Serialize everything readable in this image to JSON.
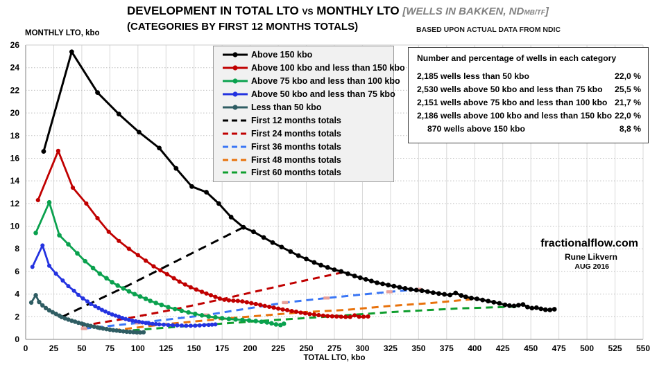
{
  "title": {
    "part1": "DEVELOPMENT IN TOTAL LTO",
    "vs": "VS",
    "part2": "MONTHLY LTO",
    "bracket_pre": "[WELLS IN BAKKEN, ND",
    "bracket_sub": "MB/TF",
    "bracket_close": "]",
    "line2": "(CATEGORIES BY FIRST 12 MONTHS TOTALS)",
    "source_note": "BASED UPON ACTUAL DATA FROM NDIC"
  },
  "axes": {
    "y_title": "MONTHLY LTO, kbo",
    "x_title": "TOTAL LTO, kbo"
  },
  "stats_box": {
    "title": "Number and percentage of wells in each category",
    "rows": [
      {
        "label": "2,185 wells less than 50 kbo",
        "pct": "22,0 %",
        "indent": false
      },
      {
        "label": "2,530 wells above 50 kbo and less than 75 kbo",
        "pct": "25,5 %",
        "indent": false
      },
      {
        "label": "2,151 wells above 75 kbo and less than 100 kbo",
        "pct": "21,7 %",
        "indent": false
      },
      {
        "label": "2,186 wells above 100 kbo and less than 150 kbo",
        "pct": "22,0 %",
        "indent": false
      },
      {
        "label": "870 wells above 150 kbo",
        "pct": "8,8 %",
        "indent": true
      }
    ]
  },
  "watermark": {
    "site": "fractionalflow.com",
    "author": "Rune Likvern",
    "date": "AUG 2016"
  },
  "chart_data": {
    "type": "line",
    "xlabel": "TOTAL LTO, kbo",
    "ylabel": "MONTHLY LTO, kbo",
    "xlim": [
      0,
      550
    ],
    "ylim": [
      0,
      26
    ],
    "x_ticks": [
      0,
      25,
      50,
      75,
      100,
      125,
      150,
      175,
      200,
      225,
      250,
      275,
      300,
      325,
      350,
      375,
      400,
      425,
      450,
      475,
      500,
      525,
      550
    ],
    "y_ticks": [
      0,
      2,
      4,
      6,
      8,
      10,
      12,
      14,
      16,
      18,
      20,
      22,
      24,
      26
    ],
    "grid": "vertical solid light gray, horizontal dotted",
    "legend_position": "upper left box",
    "series": [
      {
        "name": "Above 150 kbo",
        "color": "#000000",
        "style": "solid",
        "width": 3,
        "marker_r": 3.4,
        "points": [
          [
            16,
            16.6
          ],
          [
            41,
            25.4
          ],
          [
            64,
            21.8
          ],
          [
            83,
            19.9
          ],
          [
            101,
            18.3
          ],
          [
            119,
            16.9
          ],
          [
            134,
            15.1
          ],
          [
            148,
            13.5
          ],
          [
            161,
            13.0
          ],
          [
            172,
            12.0
          ],
          [
            183,
            10.8
          ],
          [
            194,
            9.9
          ],
          [
            203,
            9.5
          ],
          [
            212,
            9.0
          ],
          [
            220,
            8.55
          ],
          [
            228,
            8.15
          ],
          [
            236,
            7.75
          ],
          [
            243,
            7.4
          ],
          [
            250,
            7.1
          ],
          [
            257,
            6.8
          ],
          [
            263,
            6.55
          ],
          [
            269,
            6.35
          ],
          [
            275,
            6.15
          ],
          [
            281,
            6.0
          ],
          [
            287,
            5.8
          ],
          [
            293,
            5.6
          ],
          [
            298,
            5.45
          ],
          [
            303,
            5.3
          ],
          [
            308,
            5.15
          ],
          [
            313,
            5.0
          ],
          [
            318,
            4.9
          ],
          [
            323,
            4.8
          ],
          [
            328,
            4.7
          ],
          [
            333,
            4.6
          ],
          [
            338,
            4.5
          ],
          [
            343,
            4.42
          ],
          [
            348,
            4.35
          ],
          [
            353,
            4.3
          ],
          [
            358,
            4.22
          ],
          [
            363,
            4.12
          ],
          [
            368,
            4.05
          ],
          [
            373,
            3.98
          ],
          [
            378,
            3.92
          ],
          [
            383,
            4.1
          ],
          [
            388,
            3.88
          ],
          [
            392,
            3.75
          ],
          [
            397,
            3.65
          ],
          [
            402,
            3.58
          ],
          [
            407,
            3.48
          ],
          [
            412,
            3.38
          ],
          [
            417,
            3.28
          ],
          [
            422,
            3.18
          ],
          [
            427,
            3.05
          ],
          [
            431,
            2.98
          ],
          [
            435,
            2.95
          ],
          [
            439,
            3.02
          ],
          [
            443,
            3.08
          ],
          [
            447,
            2.86
          ],
          [
            451,
            2.76
          ],
          [
            455,
            2.8
          ],
          [
            459,
            2.7
          ],
          [
            463,
            2.62
          ],
          [
            467,
            2.6
          ],
          [
            471,
            2.66
          ]
        ]
      },
      {
        "name": "Above 100 kbo and less than 150 kbo",
        "color": "#C00000",
        "style": "solid",
        "width": 2.8,
        "marker_r": 3.1,
        "points": [
          [
            11,
            12.3
          ],
          [
            29,
            16.65
          ],
          [
            42,
            13.4
          ],
          [
            54,
            12.0
          ],
          [
            64,
            10.7
          ],
          [
            74,
            9.5
          ],
          [
            83,
            8.7
          ],
          [
            92,
            8.0
          ],
          [
            100,
            7.45
          ],
          [
            107,
            6.95
          ],
          [
            114,
            6.45
          ],
          [
            120,
            6.1
          ],
          [
            126,
            5.75
          ],
          [
            132,
            5.4
          ],
          [
            137,
            5.1
          ],
          [
            142,
            4.85
          ],
          [
            147,
            4.6
          ],
          [
            152,
            4.4
          ],
          [
            157,
            4.2
          ],
          [
            161,
            4.05
          ],
          [
            165,
            3.9
          ],
          [
            169,
            3.75
          ],
          [
            173,
            3.6
          ],
          [
            177,
            3.5
          ],
          [
            181,
            3.45
          ],
          [
            185,
            3.42
          ],
          [
            189,
            3.4
          ],
          [
            193,
            3.35
          ],
          [
            197,
            3.28
          ],
          [
            201,
            3.2
          ],
          [
            205,
            3.12
          ],
          [
            209,
            3.05
          ],
          [
            213,
            2.95
          ],
          [
            217,
            2.88
          ],
          [
            221,
            2.8
          ],
          [
            225,
            2.72
          ],
          [
            229,
            2.64
          ],
          [
            233,
            2.58
          ],
          [
            237,
            2.5
          ],
          [
            241,
            2.44
          ],
          [
            245,
            2.36
          ],
          [
            249,
            2.3
          ],
          [
            253,
            2.24
          ],
          [
            257,
            2.2
          ],
          [
            261,
            2.14
          ],
          [
            265,
            2.1
          ],
          [
            269,
            2.06
          ],
          [
            273,
            2.04
          ],
          [
            277,
            2.02
          ],
          [
            281,
            2.0
          ],
          [
            285,
            1.98
          ],
          [
            289,
            1.98
          ],
          [
            293,
            2.12
          ],
          [
            297,
            2.0
          ],
          [
            301,
            2.0
          ],
          [
            305,
            2.02
          ]
        ]
      },
      {
        "name": "Above 75 kbo and less than 100 kbo",
        "color": "#0AA14E",
        "style": "solid",
        "width": 2.8,
        "marker_r": 3.3,
        "points": [
          [
            9,
            9.4
          ],
          [
            21,
            12.1
          ],
          [
            30,
            9.2
          ],
          [
            38,
            8.4
          ],
          [
            46,
            7.6
          ],
          [
            53,
            6.9
          ],
          [
            60,
            6.3
          ],
          [
            66,
            5.8
          ],
          [
            72,
            5.4
          ],
          [
            77,
            5.05
          ],
          [
            82,
            4.75
          ],
          [
            87,
            4.5
          ],
          [
            92,
            4.25
          ],
          [
            97,
            4.0
          ],
          [
            102,
            3.78
          ],
          [
            107,
            3.58
          ],
          [
            111,
            3.4
          ],
          [
            116,
            3.22
          ],
          [
            121,
            3.05
          ],
          [
            127,
            2.85
          ],
          [
            133,
            2.68
          ],
          [
            139,
            2.52
          ],
          [
            145,
            2.38
          ],
          [
            151,
            2.25
          ],
          [
            157,
            2.12
          ],
          [
            163,
            2.02
          ],
          [
            169,
            1.95
          ],
          [
            175,
            1.87
          ],
          [
            181,
            1.8
          ],
          [
            187,
            1.76
          ],
          [
            193,
            1.72
          ],
          [
            199,
            1.67
          ],
          [
            205,
            1.62
          ],
          [
            210,
            1.55
          ],
          [
            215,
            1.5
          ],
          [
            219,
            1.42
          ],
          [
            223,
            1.32
          ],
          [
            227,
            1.27
          ],
          [
            230,
            1.38
          ]
        ]
      },
      {
        "name": "Above 50 kbo and less than 75 kbo",
        "color": "#2433E0",
        "style": "solid",
        "width": 2.8,
        "marker_r": 3.0,
        "points": [
          [
            6,
            6.4
          ],
          [
            15,
            8.3
          ],
          [
            21,
            6.5
          ],
          [
            27,
            5.8
          ],
          [
            33,
            5.2
          ],
          [
            38,
            4.7
          ],
          [
            43,
            4.3
          ],
          [
            47,
            3.92
          ],
          [
            51,
            3.62
          ],
          [
            55,
            3.35
          ],
          [
            58,
            3.12
          ],
          [
            62,
            2.92
          ],
          [
            65,
            2.76
          ],
          [
            68,
            2.6
          ],
          [
            71,
            2.46
          ],
          [
            74,
            2.32
          ],
          [
            77,
            2.2
          ],
          [
            80,
            2.1
          ],
          [
            83,
            2.0
          ],
          [
            86,
            1.9
          ],
          [
            89,
            1.8
          ],
          [
            92,
            1.72
          ],
          [
            95,
            1.65
          ],
          [
            98,
            1.6
          ],
          [
            101,
            1.55
          ],
          [
            104,
            1.5
          ],
          [
            107,
            1.45
          ],
          [
            110,
            1.4
          ],
          [
            113,
            1.37
          ],
          [
            116,
            1.35
          ],
          [
            119,
            1.32
          ],
          [
            123,
            1.3
          ],
          [
            127,
            1.27
          ],
          [
            131,
            1.25
          ],
          [
            135,
            1.24
          ],
          [
            139,
            1.22
          ],
          [
            143,
            1.2
          ],
          [
            147,
            1.2
          ],
          [
            151,
            1.21
          ],
          [
            155,
            1.23
          ],
          [
            159,
            1.26
          ],
          [
            163,
            1.28
          ],
          [
            166,
            1.3
          ],
          [
            169,
            1.32
          ]
        ]
      },
      {
        "name": "Less than 50 kbo",
        "color": "#2F5D63",
        "style": "solid",
        "width": 2.8,
        "marker_r": 3.2,
        "points": [
          [
            5,
            3.25
          ],
          [
            9,
            3.9
          ],
          [
            12,
            3.3
          ],
          [
            15,
            3.0
          ],
          [
            18,
            2.76
          ],
          [
            21,
            2.56
          ],
          [
            24,
            2.4
          ],
          [
            27,
            2.25
          ],
          [
            30,
            2.1
          ],
          [
            32,
            1.97
          ],
          [
            35,
            1.86
          ],
          [
            38,
            1.75
          ],
          [
            41,
            1.65
          ],
          [
            44,
            1.56
          ],
          [
            47,
            1.47
          ],
          [
            50,
            1.39
          ],
          [
            52,
            1.32
          ],
          [
            55,
            1.25
          ],
          [
            58,
            1.18
          ],
          [
            61,
            1.12
          ],
          [
            64,
            1.06
          ],
          [
            66,
            1.01
          ],
          [
            69,
            0.96
          ],
          [
            72,
            0.91
          ],
          [
            75,
            0.86
          ],
          [
            78,
            0.81
          ],
          [
            81,
            0.78
          ],
          [
            84,
            0.74
          ],
          [
            87,
            0.71
          ],
          [
            90,
            0.68
          ],
          [
            93,
            0.66
          ],
          [
            96,
            0.64
          ],
          [
            99,
            0.62
          ],
          [
            102,
            0.61
          ],
          [
            105,
            0.63
          ]
        ]
      },
      {
        "name": "First 12 months totals",
        "color": "#000000",
        "style": "dashed",
        "dash": "12 8",
        "points": [
          [
            32,
            1.97
          ],
          [
            90,
            4.7
          ],
          [
            140,
            7.2
          ],
          [
            194,
            9.9
          ]
        ]
      },
      {
        "name": "First 24 months totals",
        "color": "#C00000",
        "style": "dashed",
        "dash": "10 7",
        "points": [
          [
            50,
            1.2
          ],
          [
            90,
            1.85
          ],
          [
            130,
            2.6
          ],
          [
            175,
            3.55
          ],
          [
            230,
            4.8
          ],
          [
            284,
            5.95
          ]
        ]
      },
      {
        "name": "First 36 months totals",
        "color": "#3A76F5",
        "style": "dashed",
        "dash": "10 7",
        "marker_color": "#E8A09A",
        "points": [
          [
            52,
            0.95
          ],
          [
            100,
            1.45
          ],
          [
            161,
            2.15
          ],
          [
            231,
            3.25
          ],
          [
            268,
            3.65
          ],
          [
            324,
            4.2
          ],
          [
            350,
            4.42
          ]
        ]
      },
      {
        "name": "First 48 months totals",
        "color": "#E8720C",
        "style": "dashed",
        "dash": "10 7",
        "points": [
          [
            78,
            0.8
          ],
          [
            125,
            1.35
          ],
          [
            185,
            1.9
          ],
          [
            247,
            2.4
          ],
          [
            285,
            2.6
          ],
          [
            324,
            2.95
          ],
          [
            360,
            3.2
          ],
          [
            398,
            3.55
          ]
        ]
      },
      {
        "name": "First 60 months totals",
        "color": "#0F9E2E",
        "style": "dashed",
        "dash": "10 7",
        "points": [
          [
            85,
            0.72
          ],
          [
            140,
            1.15
          ],
          [
            205,
            1.6
          ],
          [
            260,
            1.95
          ],
          [
            324,
            2.4
          ],
          [
            385,
            2.73
          ],
          [
            440,
            2.9
          ]
        ]
      }
    ]
  }
}
